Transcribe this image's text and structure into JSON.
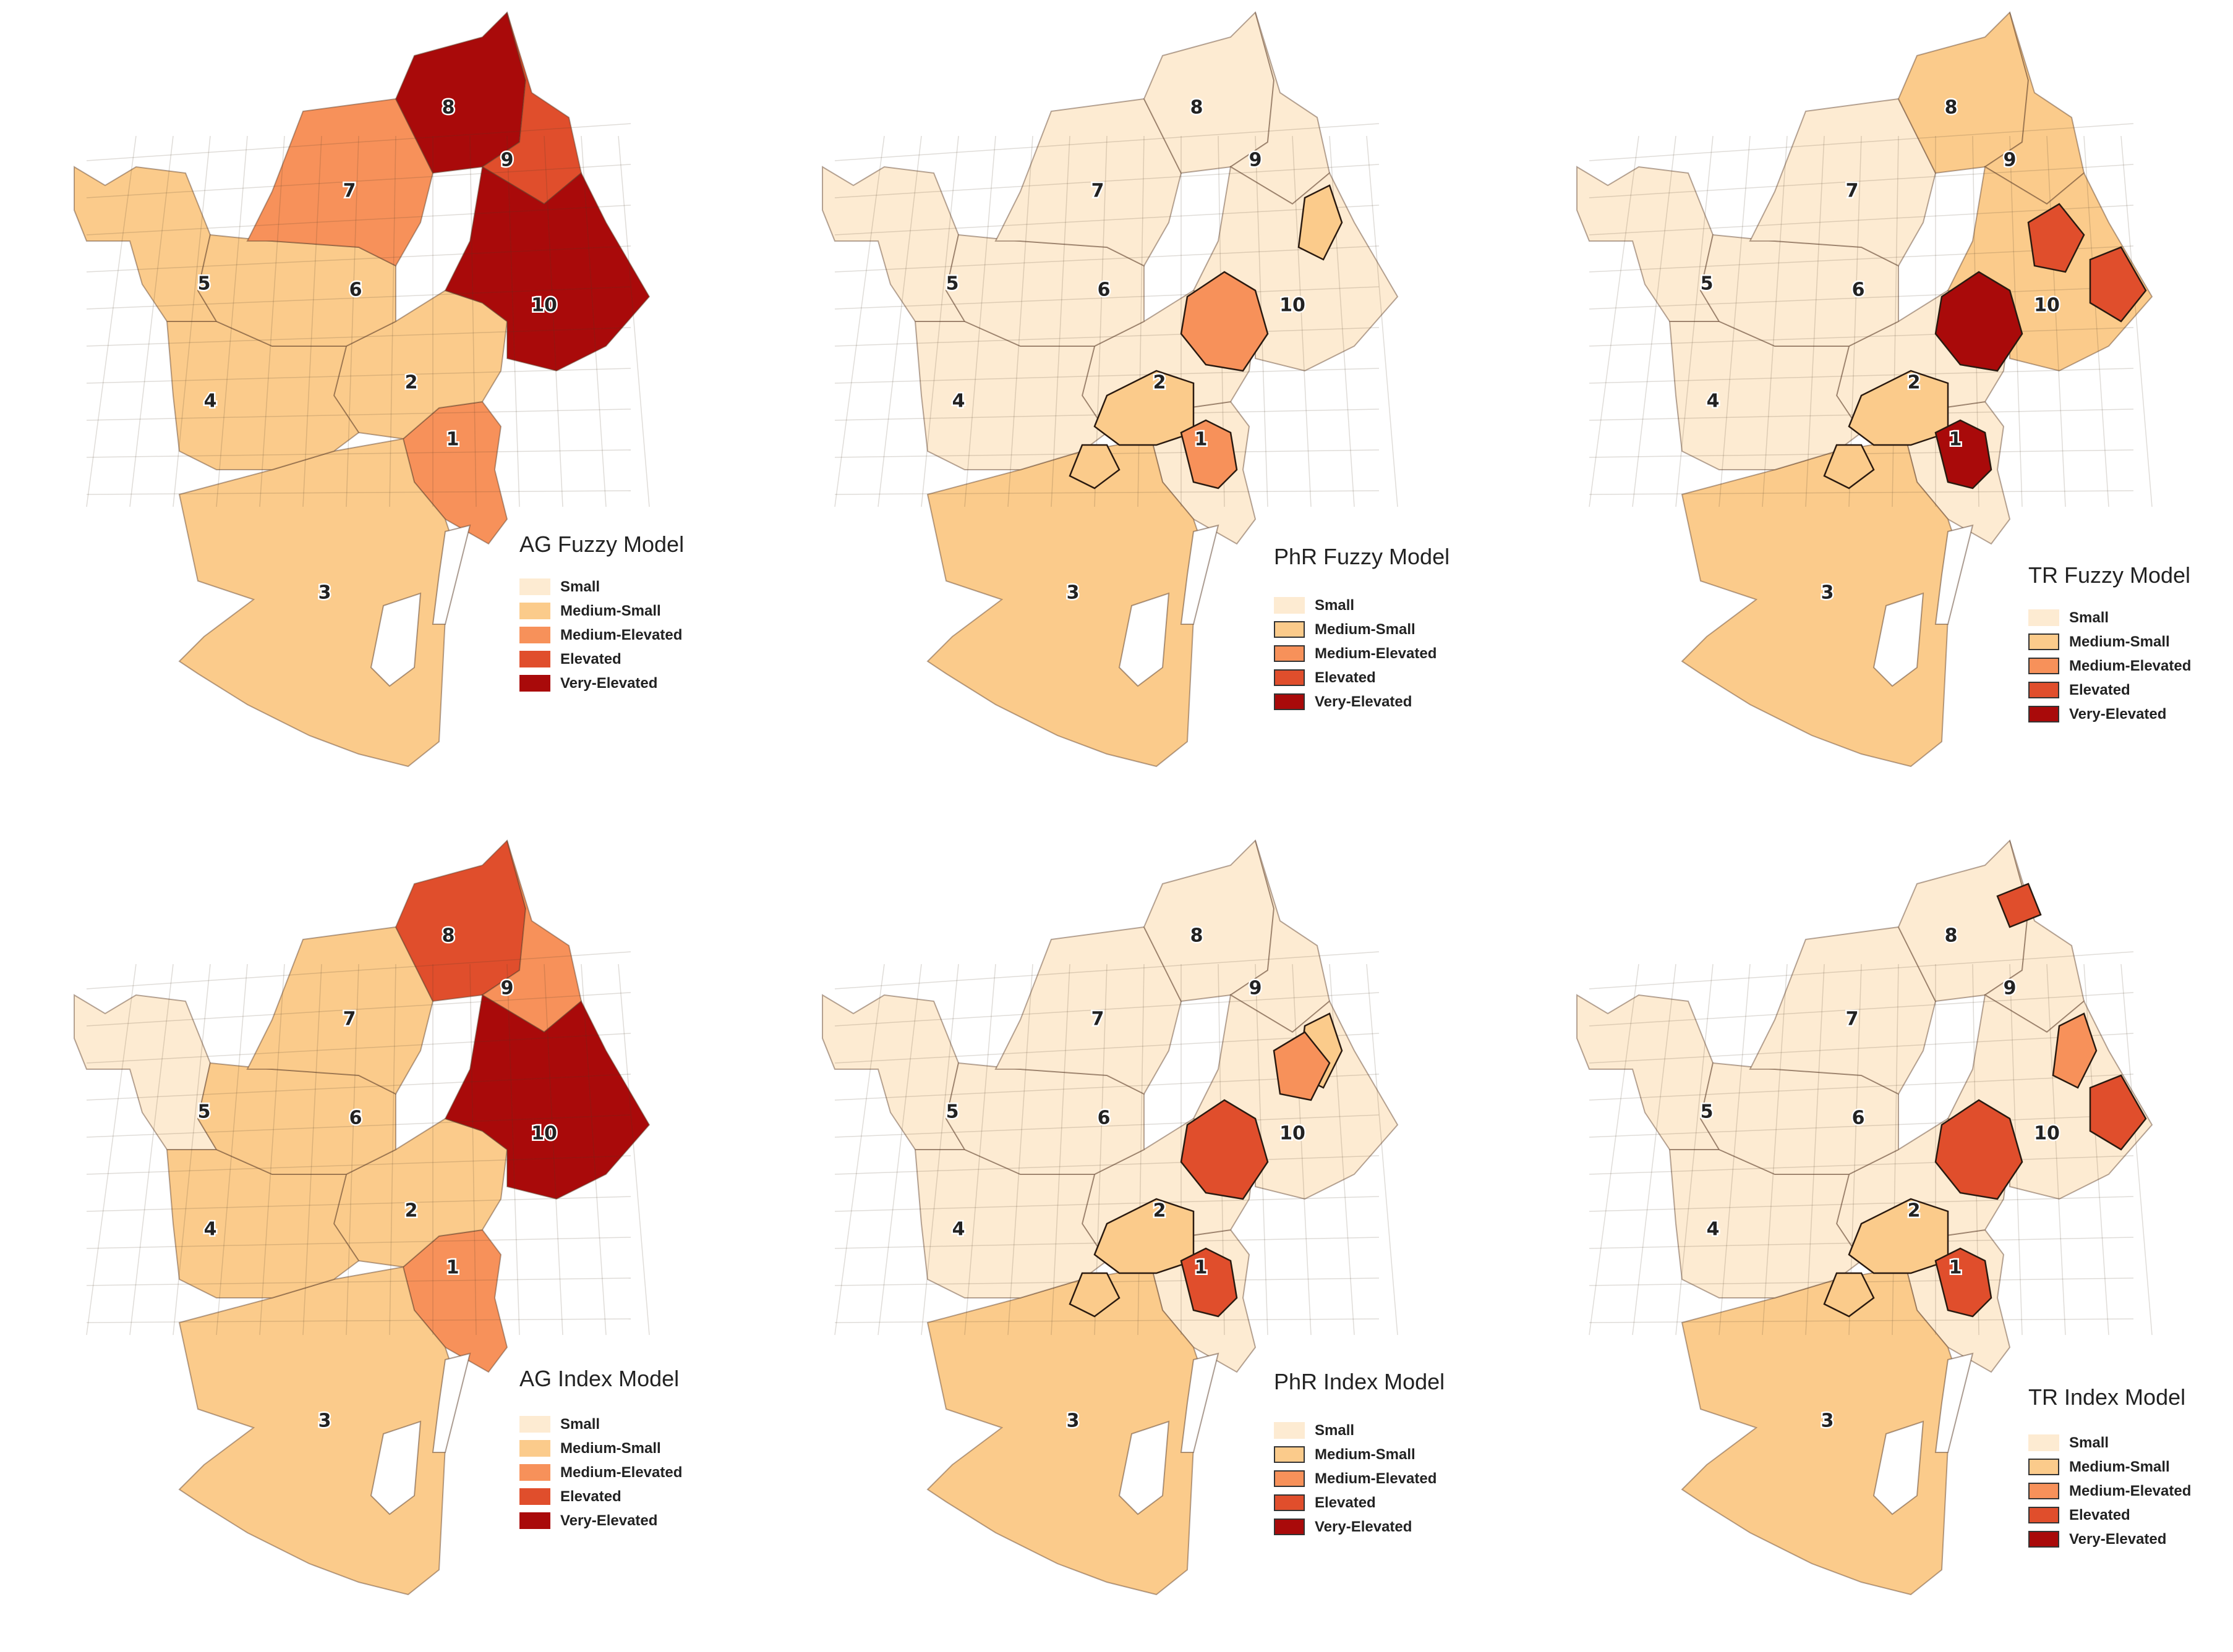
{
  "legend_categories": [
    {
      "label": "Small",
      "color": "#FDEBD2"
    },
    {
      "label": "Medium-Small",
      "color": "#FBCB8B"
    },
    {
      "label": "Medium-Elevated",
      "color": "#F7915A"
    },
    {
      "label": "Elevated",
      "color": "#E04E2C"
    },
    {
      "label": "Very-Elevated",
      "color": "#A90A0A"
    }
  ],
  "district_labels": [
    "1",
    "2",
    "3",
    "4",
    "5",
    "6",
    "7",
    "8",
    "9",
    "10"
  ],
  "panels": [
    {
      "title": "AG Fuzzy Model",
      "districts": {
        "1": "Medium-Elevated",
        "2": "Medium-Small",
        "3": "Medium-Small",
        "4": "Medium-Small",
        "5": "Medium-Small",
        "6": "Medium-Small",
        "7": "Medium-Elevated",
        "8": "Very-Elevated",
        "9": "Elevated",
        "10": "Very-Elevated"
      },
      "hotspots": []
    },
    {
      "title": "PhR Fuzzy Model",
      "districts": {
        "1": "Small",
        "2": "Small",
        "3": "Medium-Small",
        "4": "Small",
        "5": "Small",
        "6": "Small",
        "7": "Small",
        "8": "Small",
        "9": "Small",
        "10": "Small"
      },
      "hotspots": [
        {
          "area": "central-north",
          "level": "Medium-Elevated"
        },
        {
          "area": "central",
          "level": "Medium-Small"
        },
        {
          "area": "old-town",
          "level": "Medium-Elevated"
        },
        {
          "area": "south-strip",
          "level": "Medium-Small"
        },
        {
          "area": "east-pockets",
          "level": "Medium-Small"
        }
      ]
    },
    {
      "title": "TR Fuzzy Model",
      "districts": {
        "1": "Small",
        "2": "Small",
        "3": "Medium-Small",
        "4": "Small",
        "5": "Small",
        "6": "Small",
        "7": "Small",
        "8": "Medium-Small",
        "9": "Medium-Small",
        "10": "Medium-Small"
      },
      "hotspots": [
        {
          "area": "central-north",
          "level": "Very-Elevated"
        },
        {
          "area": "central",
          "level": "Medium-Small"
        },
        {
          "area": "old-town",
          "level": "Very-Elevated"
        },
        {
          "area": "east-inner",
          "level": "Elevated"
        },
        {
          "area": "east-coast",
          "level": "Elevated"
        },
        {
          "area": "south-strip",
          "level": "Medium-Small"
        }
      ]
    },
    {
      "title": "AG Index Model",
      "districts": {
        "1": "Medium-Elevated",
        "2": "Medium-Small",
        "3": "Medium-Small",
        "4": "Medium-Small",
        "5": "Small",
        "6": "Medium-Small",
        "7": "Medium-Small",
        "8": "Elevated",
        "9": "Medium-Elevated",
        "10": "Very-Elevated"
      },
      "hotspots": []
    },
    {
      "title": "PhR Index Model",
      "districts": {
        "1": "Small",
        "2": "Small",
        "3": "Medium-Small",
        "4": "Small",
        "5": "Small",
        "6": "Small",
        "7": "Small",
        "8": "Small",
        "9": "Small",
        "10": "Small"
      },
      "hotspots": [
        {
          "area": "central-north",
          "level": "Elevated"
        },
        {
          "area": "central",
          "level": "Medium-Small"
        },
        {
          "area": "old-town",
          "level": "Elevated"
        },
        {
          "area": "south-strip",
          "level": "Medium-Small"
        },
        {
          "area": "east-pockets",
          "level": "Medium-Small"
        },
        {
          "area": "east-inner",
          "level": "Medium-Elevated"
        }
      ]
    },
    {
      "title": "TR Index Model",
      "districts": {
        "1": "Small",
        "2": "Small",
        "3": "Medium-Small",
        "4": "Small",
        "5": "Small",
        "6": "Small",
        "7": "Small",
        "8": "Small",
        "9": "Small",
        "10": "Small"
      },
      "hotspots": [
        {
          "area": "north-tip",
          "level": "Elevated"
        },
        {
          "area": "central-north",
          "level": "Elevated"
        },
        {
          "area": "central",
          "level": "Medium-Small"
        },
        {
          "area": "old-town",
          "level": "Elevated"
        },
        {
          "area": "east-coast",
          "level": "Elevated"
        },
        {
          "area": "east-pockets",
          "level": "Medium-Elevated"
        },
        {
          "area": "south-strip",
          "level": "Medium-Small"
        }
      ]
    }
  ]
}
